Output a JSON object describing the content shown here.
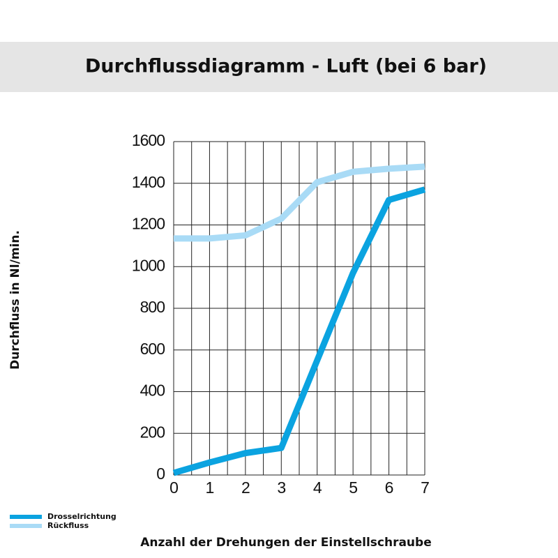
{
  "chart_data": {
    "type": "line",
    "title": "Durchflussdiagramm - Luft (bei 6 bar)",
    "y_label": "Durchfluss in Nl/min.",
    "x_label": "Anzahl der Drehungen der Einstellschraube",
    "x": [
      0,
      1,
      2,
      3,
      4,
      5,
      6,
      7
    ],
    "series": [
      {
        "name": "Drosselrichtung",
        "color": "#0ba3e0",
        "values": [
          10,
          60,
          105,
          130,
          550,
          970,
          1320,
          1370
        ]
      },
      {
        "name": "Rückfluss",
        "color": "#a9dbf6",
        "values": [
          1135,
          1135,
          1150,
          1230,
          1405,
          1455,
          1470,
          1480
        ]
      }
    ],
    "xlim": [
      0,
      7
    ],
    "xticks": [
      0,
      1,
      2,
      3,
      4,
      5,
      6,
      7
    ],
    "ylim": [
      0,
      1600
    ],
    "yticks": [
      0,
      200,
      400,
      600,
      800,
      1000,
      1200,
      1400,
      1600
    ],
    "grid": true,
    "legend": "bottom-left"
  }
}
